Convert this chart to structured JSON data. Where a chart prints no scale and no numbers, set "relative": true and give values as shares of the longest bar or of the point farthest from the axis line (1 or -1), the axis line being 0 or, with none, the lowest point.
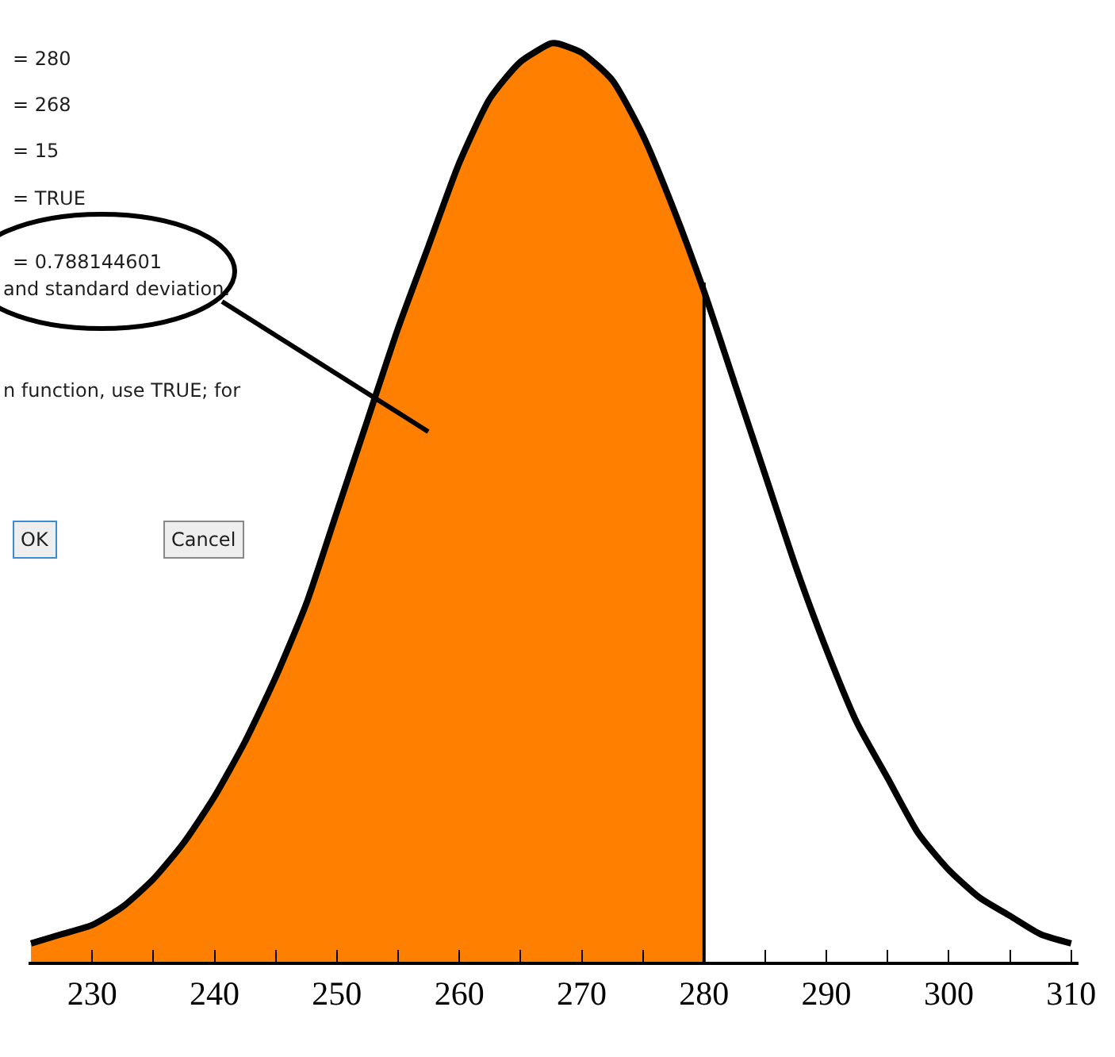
{
  "chart_data": {
    "type": "line",
    "relative": true,
    "x": [
      225,
      227.5,
      230,
      232.5,
      235,
      237.5,
      240,
      242.5,
      245,
      247.5,
      250,
      252.5,
      255,
      257.5,
      260,
      262.5,
      265,
      267.5,
      268,
      270,
      272.5,
      275,
      277.5,
      280,
      282.5,
      285,
      287.5,
      290,
      292.5,
      295,
      297.5,
      300,
      302.5,
      305,
      307.5,
      310
    ],
    "series": [
      {
        "type": "area",
        "color": "#ff8000",
        "x": [
          225,
          227.5,
          230,
          232.5,
          235,
          237.5,
          240,
          242.5,
          245,
          247.5,
          250,
          252.5,
          255,
          257.5,
          260,
          262.5,
          265,
          267.5,
          268,
          270,
          272.5,
          275,
          277.5,
          280
        ],
        "values": [
          0.02,
          0.03,
          0.04,
          0.06,
          0.09,
          0.13,
          0.18,
          0.24,
          0.31,
          0.39,
          0.49,
          0.59,
          0.69,
          0.78,
          0.87,
          0.94,
          0.98,
          1.0,
          1.0,
          0.99,
          0.96,
          0.9,
          0.82,
          0.73
        ]
      },
      {
        "color": "#000000",
        "values": [
          0.02,
          0.03,
          0.04,
          0.06,
          0.09,
          0.13,
          0.18,
          0.24,
          0.31,
          0.39,
          0.49,
          0.59,
          0.69,
          0.78,
          0.87,
          0.94,
          0.98,
          1.0,
          1.0,
          0.99,
          0.96,
          0.9,
          0.82,
          0.73,
          0.63,
          0.53,
          0.43,
          0.34,
          0.26,
          0.2,
          0.14,
          0.1,
          0.07,
          0.05,
          0.03,
          0.02
        ]
      }
    ],
    "xlim": [
      224.8,
      310.6
    ],
    "xticks": [
      230,
      {
        "value": 235,
        "label": null
      },
      240,
      {
        "value": 245,
        "label": null
      },
      250,
      {
        "value": 255,
        "label": null
      },
      260,
      {
        "value": 265,
        "label": null
      },
      270,
      {
        "value": 275,
        "label": null
      },
      280,
      {
        "value": 285,
        "label": null
      },
      290,
      {
        "value": 295,
        "label": null
      },
      300,
      {
        "value": 305,
        "label": null
      },
      310
    ],
    "ref_lines": [
      {
        "axis": "x",
        "value": 280,
        "color": "#000000"
      }
    ],
    "annotations": [
      "= 280",
      "= 268",
      "= 15",
      "= TRUE",
      "= 0.788144601",
      "and standard deviation.",
      "n function, use TRUE; for",
      "OK",
      "Cancel"
    ],
    "marker": "none",
    "line_style": "solid"
  }
}
